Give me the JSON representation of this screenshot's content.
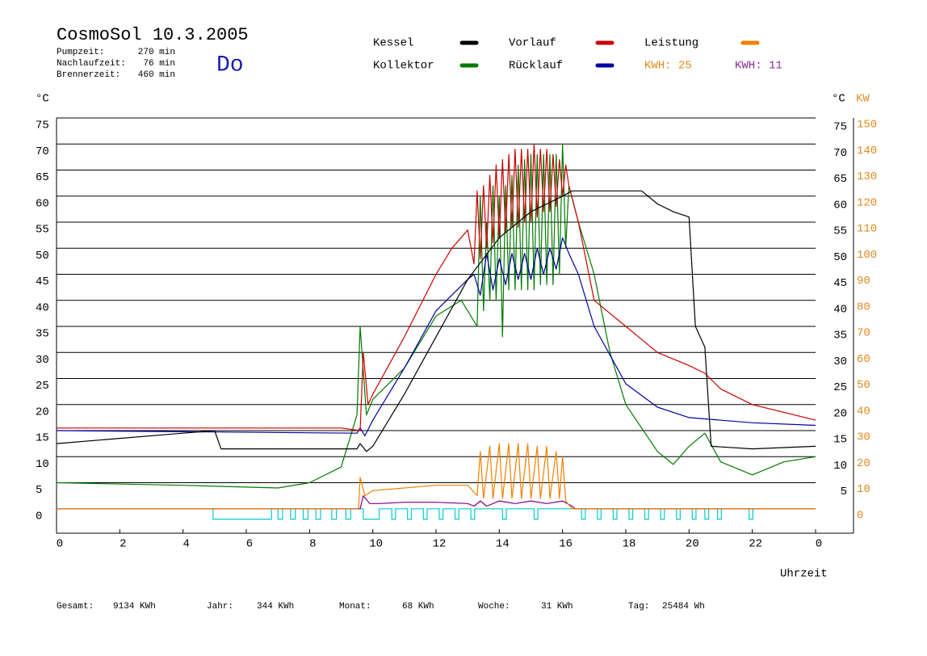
{
  "chart_data": {
    "type": "line",
    "title": "CosmoSol 10.3.2005",
    "info": [
      {
        "label": "Pumpzeit:",
        "value": "270 min"
      },
      {
        "label": "Nachlaufzeit:",
        "value": "76 min"
      },
      {
        "label": "Brennerzeit:",
        "value": "460 min"
      }
    ],
    "weekday": "Do",
    "kwh_labels": [
      {
        "text": "KWH: 25",
        "color": "#e08a1e"
      },
      {
        "text": "KWH: 11",
        "color": "#8a2a9a"
      }
    ],
    "ylabel": "°C",
    "y2label_c": "°C",
    "y2label": "KW",
    "xlabel": "Uhrzeit",
    "xlim": [
      0,
      24
    ],
    "xticks": [
      0,
      2,
      4,
      6,
      8,
      10,
      12,
      14,
      16,
      18,
      20,
      22,
      {
        "value": 24,
        "label": "0"
      }
    ],
    "ylim": [
      -5,
      75
    ],
    "yticks": [
      0,
      5,
      10,
      15,
      20,
      25,
      30,
      35,
      40,
      45,
      50,
      55,
      60,
      65,
      70,
      75
    ],
    "yticks_right": [
      5,
      10,
      15,
      20,
      25,
      30,
      35,
      40,
      45,
      50,
      55,
      60,
      65,
      70,
      75
    ],
    "y2lim": [
      -10,
      150
    ],
    "y2ticks": [
      0,
      10,
      20,
      30,
      40,
      50,
      60,
      70,
      80,
      90,
      100,
      110,
      120,
      130,
      140,
      150
    ],
    "grid": true,
    "series": [
      {
        "name": "Kessel",
        "color": "#000000",
        "x": [
          0,
          4,
          5,
          5.2,
          9.5,
          9.6,
          9.8,
          10,
          11,
          12,
          13,
          14,
          15,
          16,
          16.3,
          18.5,
          19,
          19.5,
          20,
          20.2,
          20.5,
          20.7,
          22,
          24
        ],
        "values": [
          12.5,
          14.5,
          15,
          11.5,
          11.5,
          12.5,
          11,
          12,
          22,
          33,
          44,
          52,
          57,
          60,
          61,
          61,
          58.5,
          57,
          56,
          35,
          31,
          12,
          11.5,
          12
        ]
      },
      {
        "name": "Vorlauf",
        "color": "#cc0000",
        "x": [
          0,
          9,
          9.6,
          9.7,
          9.85,
          10,
          11,
          12,
          12.5,
          13,
          13.2,
          13.3,
          13.4,
          13.5,
          13.6,
          13.7,
          13.8,
          13.9,
          14,
          14.1,
          14.2,
          14.3,
          14.4,
          14.5,
          14.6,
          14.7,
          14.8,
          14.9,
          15,
          15.1,
          15.2,
          15.3,
          15.4,
          15.5,
          15.6,
          15.7,
          15.8,
          15.9,
          16,
          16.1,
          16.2,
          16.5,
          17,
          18,
          19,
          20,
          20.5,
          21,
          22,
          24
        ],
        "values": [
          15.5,
          15.5,
          15,
          30,
          20,
          22,
          33,
          45,
          50,
          53.5,
          47,
          61,
          48,
          62,
          50,
          64,
          51,
          66,
          52,
          67,
          53,
          68,
          54,
          69,
          54,
          69,
          55,
          69,
          55,
          70,
          56,
          69,
          57,
          69,
          57,
          68,
          58,
          67,
          60,
          66,
          62,
          55,
          40,
          35,
          30,
          27.5,
          26,
          23,
          20,
          17
        ]
      },
      {
        "name": "Rücklauf",
        "color": "#0000a0",
        "x": [
          0,
          9.5,
          9.6,
          9.75,
          10,
          11,
          12,
          13,
          13.2,
          13.4,
          13.6,
          13.8,
          14,
          14.2,
          14.4,
          14.6,
          14.8,
          15,
          15.2,
          15.4,
          15.6,
          15.8,
          16,
          16.2,
          16.5,
          17,
          18,
          19,
          20,
          22,
          24
        ],
        "values": [
          15,
          14.5,
          15.5,
          14,
          17,
          27,
          38,
          44,
          45,
          41,
          49,
          42,
          48,
          43,
          49,
          44,
          49,
          44,
          50,
          45,
          50,
          46,
          52,
          49,
          45,
          35,
          24,
          19.5,
          17.5,
          16.5,
          16
        ]
      },
      {
        "name": "Kollektor",
        "color": "#007a00",
        "x": [
          0,
          4,
          7,
          8,
          9,
          9.5,
          9.6,
          9.8,
          10,
          11,
          12,
          12.8,
          13.3,
          13.4,
          13.5,
          13.6,
          13.7,
          13.8,
          13.9,
          14,
          14.1,
          14.2,
          14.3,
          14.4,
          14.5,
          14.6,
          14.7,
          14.8,
          14.9,
          15,
          15.1,
          15.2,
          15.3,
          15.4,
          15.5,
          15.6,
          15.7,
          15.8,
          15.9,
          16,
          16.1,
          16.2,
          16.5,
          17,
          17.5,
          18,
          19,
          19.5,
          20,
          20.5,
          21,
          22,
          23,
          24
        ],
        "values": [
          5,
          4.5,
          4,
          5,
          8,
          18,
          35,
          18,
          21,
          27,
          37,
          40,
          35,
          60,
          38,
          55,
          40,
          62,
          40,
          60,
          33,
          62,
          42,
          64,
          42,
          66,
          42,
          67,
          42,
          68,
          42,
          68,
          43,
          68,
          43,
          68,
          43,
          68,
          45,
          70,
          50,
          62,
          55,
          45,
          30,
          20,
          11,
          8.5,
          12,
          14.5,
          9,
          6.5,
          9,
          10
        ]
      },
      {
        "name": "Leistung",
        "color": "#f08000",
        "axis": "y2",
        "x": [
          0,
          9.55,
          9.6,
          9.75,
          10,
          11,
          12,
          13,
          13.3,
          13.4,
          13.5,
          13.7,
          13.8,
          14,
          14.1,
          14.3,
          14.4,
          14.6,
          14.7,
          14.9,
          15,
          15.2,
          15.3,
          15.5,
          15.6,
          15.8,
          15.9,
          16,
          16.1,
          16.3,
          24
        ],
        "values": [
          0,
          0,
          12,
          5,
          7,
          8,
          9,
          9,
          5,
          22,
          4,
          24,
          4,
          25,
          4,
          25,
          4,
          25,
          4,
          25,
          4,
          24,
          4,
          24,
          4,
          22,
          4,
          20,
          3,
          0,
          0
        ]
      },
      {
        "color": "#800080",
        "axis": "y2",
        "x": [
          0,
          9.6,
          9.7,
          9.9,
          10.2,
          11,
          12,
          13,
          13.2,
          13.4,
          13.6,
          14,
          14.5,
          15,
          15.5,
          16,
          16.3,
          16.4,
          24
        ],
        "values": [
          0,
          0,
          5,
          2,
          2,
          2.5,
          2.5,
          2,
          1,
          3,
          1,
          3,
          2,
          3,
          2,
          3,
          1,
          0,
          0
        ]
      },
      {
        "color": "#00cccc",
        "x": [
          0,
          4.95,
          4.95,
          6.8,
          6.8,
          7.0,
          7.0,
          7.15,
          7.15,
          7.4,
          7.4,
          7.55,
          7.55,
          7.8,
          7.8,
          7.95,
          7.95,
          8.2,
          8.2,
          8.35,
          8.35,
          8.7,
          8.7,
          8.85,
          8.85,
          9.15,
          9.15,
          9.3,
          9.3,
          9.7,
          9.7,
          10.2,
          10.2,
          10.6,
          10.6,
          10.72,
          10.72,
          11.1,
          11.1,
          11.22,
          11.22,
          11.6,
          11.6,
          11.72,
          11.72,
          12.1,
          12.1,
          12.22,
          12.22,
          12.6,
          12.6,
          12.72,
          12.72,
          13.1,
          13.1,
          13.22,
          13.22,
          14.1,
          14.1,
          14.22,
          14.22,
          15.1,
          15.1,
          15.22,
          15.22,
          16.6,
          16.6,
          16.72,
          16.72,
          17.1,
          17.1,
          17.22,
          17.22,
          17.6,
          17.6,
          17.72,
          17.72,
          18.1,
          18.1,
          18.22,
          18.22,
          18.6,
          18.6,
          18.72,
          18.72,
          19.1,
          19.1,
          19.22,
          19.22,
          19.6,
          19.6,
          19.72,
          19.72,
          20.1,
          20.1,
          20.22,
          20.22,
          20.5,
          20.5,
          20.62,
          20.62,
          20.9,
          20.9,
          21.02,
          21.02,
          21.9,
          21.9,
          22.02,
          22.02,
          24
        ],
        "values": [
          0,
          0,
          -2,
          -2,
          0,
          0,
          -2,
          -2,
          0,
          0,
          -2,
          -2,
          0,
          0,
          -2,
          -2,
          0,
          0,
          -2,
          -2,
          0,
          0,
          -2,
          -2,
          0,
          0,
          -2,
          -2,
          0,
          0,
          -2,
          -2,
          0,
          0,
          -2,
          -2,
          0,
          0,
          -2,
          -2,
          0,
          0,
          -2,
          -2,
          0,
          0,
          -2,
          -2,
          0,
          0,
          -2,
          -2,
          0,
          0,
          -2,
          -2,
          0,
          0,
          -2,
          -2,
          0,
          0,
          -2,
          -2,
          0,
          0,
          -2,
          -2,
          0,
          0,
          -2,
          -2,
          0,
          0,
          -2,
          -2,
          0,
          0,
          -2,
          -2,
          0,
          0,
          -2,
          -2,
          0,
          0,
          -2,
          -2,
          0,
          0,
          -2,
          -2,
          0,
          0,
          -2,
          -2,
          0,
          0,
          -2,
          -2,
          0,
          0,
          -2,
          -2,
          0,
          0,
          -2,
          -2,
          0,
          0
        ]
      }
    ],
    "footer": [
      {
        "label": "Gesamt:",
        "value": "9134 KWh"
      },
      {
        "label": "Jahr:",
        "value": "344 KWh"
      },
      {
        "label": "Monat:",
        "value": "68 KWh"
      },
      {
        "label": "Woche:",
        "value": "31 KWh"
      },
      {
        "label": "Tag:",
        "value": "25484 Wh"
      }
    ]
  }
}
